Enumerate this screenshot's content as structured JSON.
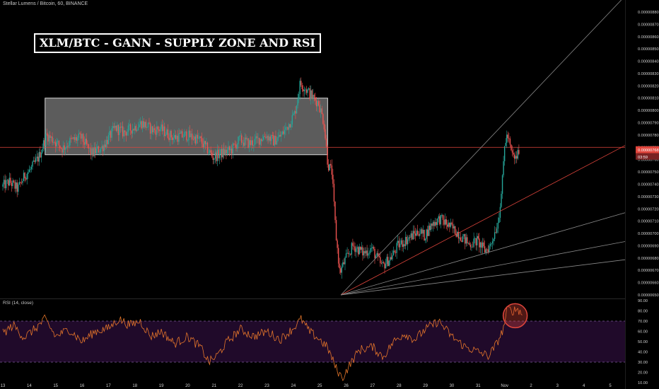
{
  "header": {
    "symbol": "Stellar Lumens / Bitcoin, 60, BINANCE",
    "title": "XLM/BTC - GANN - SUPPLY ZONE AND RSI"
  },
  "rsi_panel": {
    "label": "RSI (14, close)"
  },
  "colors": {
    "background": "#000000",
    "candle_up": "#26a69a",
    "candle_down": "#ef5350",
    "price_line": "#e0453c",
    "rsi_line": "#e6762a",
    "rsi_band_fill": "#200a2a",
    "rsi_levels": "#7a5a9a",
    "gann_fan": "#8a8a8a",
    "gann_red": "#e0453c",
    "supply_zone": "#808080",
    "highlight_circle": "#e0453c"
  },
  "chart_data": [
    {
      "type": "candlestick",
      "title": "XLM/BTC - GANN - SUPPLY ZONE AND RSI",
      "symbol": "Stellar Lumens / Bitcoin, 60, BINANCE",
      "price_axis": {
        "ylim": [
          6.5e-06,
          8.8e-06
        ],
        "ticks": [
          "0.00000880",
          "0.00000870",
          "0.00000860",
          "0.00000850",
          "0.00000840",
          "0.00000830",
          "0.00000820",
          "0.00000810",
          "0.00000800",
          "0.00000790",
          "0.00000780",
          "0.00000770",
          "0.00000760",
          "0.00000750",
          "0.00000740",
          "0.00000730",
          "0.00000720",
          "0.00000710",
          "0.00000700",
          "0.00000690",
          "0.00000680",
          "0.00000670",
          "0.00000660",
          "0.00000650"
        ]
      },
      "time_axis": {
        "ticks": [
          "13",
          "14",
          "15",
          "16",
          "17",
          "18",
          "19",
          "20",
          "21",
          "22",
          "23",
          "24",
          "25",
          "26",
          "27",
          "28",
          "29",
          "30",
          "31",
          "Nov",
          "2",
          "3",
          "4",
          "5"
        ]
      },
      "price_path": [
        {
          "day": 13.0,
          "price": 7.38e-06
        },
        {
          "day": 13.3,
          "price": 7.42e-06
        },
        {
          "day": 13.6,
          "price": 7.36e-06
        },
        {
          "day": 13.9,
          "price": 7.48e-06
        },
        {
          "day": 14.1,
          "price": 7.52e-06
        },
        {
          "day": 14.4,
          "price": 7.62e-06
        },
        {
          "day": 14.7,
          "price": 7.8e-06
        },
        {
          "day": 15.0,
          "price": 7.75e-06
        },
        {
          "day": 15.3,
          "price": 7.69e-06
        },
        {
          "day": 15.6,
          "price": 7.75e-06
        },
        {
          "day": 16.0,
          "price": 7.78e-06
        },
        {
          "day": 16.4,
          "price": 7.65e-06
        },
        {
          "day": 16.8,
          "price": 7.7e-06
        },
        {
          "day": 17.0,
          "price": 7.76e-06
        },
        {
          "day": 17.3,
          "price": 7.86e-06
        },
        {
          "day": 17.6,
          "price": 7.82e-06
        },
        {
          "day": 18.0,
          "price": 7.86e-06
        },
        {
          "day": 18.3,
          "price": 7.9e-06
        },
        {
          "day": 18.7,
          "price": 7.84e-06
        },
        {
          "day": 19.0,
          "price": 7.85e-06
        },
        {
          "day": 19.5,
          "price": 7.78e-06
        },
        {
          "day": 20.0,
          "price": 7.8e-06
        },
        {
          "day": 20.5,
          "price": 7.76e-06
        },
        {
          "day": 20.8,
          "price": 7.68e-06
        },
        {
          "day": 21.0,
          "price": 7.62e-06
        },
        {
          "day": 21.3,
          "price": 7.65e-06
        },
        {
          "day": 21.7,
          "price": 7.68e-06
        },
        {
          "day": 22.0,
          "price": 7.76e-06
        },
        {
          "day": 22.4,
          "price": 7.73e-06
        },
        {
          "day": 22.8,
          "price": 7.77e-06
        },
        {
          "day": 23.0,
          "price": 7.8e-06
        },
        {
          "day": 23.3,
          "price": 7.75e-06
        },
        {
          "day": 23.6,
          "price": 7.8e-06
        },
        {
          "day": 23.9,
          "price": 7.9e-06
        },
        {
          "day": 24.1,
          "price": 7.98e-06
        },
        {
          "day": 24.3,
          "price": 8.22e-06
        },
        {
          "day": 24.5,
          "price": 8.18e-06
        },
        {
          "day": 24.8,
          "price": 8.1e-06
        },
        {
          "day": 25.0,
          "price": 8.06e-06
        },
        {
          "day": 25.2,
          "price": 7.9e-06
        },
        {
          "day": 25.35,
          "price": 7.56e-06
        },
        {
          "day": 25.5,
          "price": 7.5e-06
        },
        {
          "day": 25.65,
          "price": 7e-06
        },
        {
          "day": 25.8,
          "price": 6.68e-06
        },
        {
          "day": 26.0,
          "price": 6.78e-06
        },
        {
          "day": 26.3,
          "price": 6.9e-06
        },
        {
          "day": 26.7,
          "price": 6.84e-06
        },
        {
          "day": 27.0,
          "price": 6.88e-06
        },
        {
          "day": 27.4,
          "price": 6.73e-06
        },
        {
          "day": 27.8,
          "price": 6.82e-06
        },
        {
          "day": 28.0,
          "price": 6.9e-06
        },
        {
          "day": 28.4,
          "price": 6.96e-06
        },
        {
          "day": 28.8,
          "price": 7.02e-06
        },
        {
          "day": 29.0,
          "price": 6.98e-06
        },
        {
          "day": 29.3,
          "price": 7.08e-06
        },
        {
          "day": 29.6,
          "price": 7.12e-06
        },
        {
          "day": 30.0,
          "price": 7.05e-06
        },
        {
          "day": 30.3,
          "price": 7e-06
        },
        {
          "day": 30.7,
          "price": 6.91e-06
        },
        {
          "day": 31.0,
          "price": 6.94e-06
        },
        {
          "day": 31.3,
          "price": 6.86e-06
        },
        {
          "day": 31.5,
          "price": 6.9e-06
        },
        {
          "day": 31.8,
          "price": 7.1e-06
        },
        {
          "day": 31.95,
          "price": 7.4e-06
        },
        {
          "day": 32.05,
          "price": 7.74e-06
        },
        {
          "day": 32.15,
          "price": 7.8e-06
        },
        {
          "day": 32.3,
          "price": 7.65e-06
        },
        {
          "day": 32.45,
          "price": 7.6e-06
        },
        {
          "day": 32.6,
          "price": 7.68e-06
        }
      ],
      "current_price": {
        "value": "0.00000768",
        "countdown": "03:59"
      },
      "supply_zone": {
        "day_start": 14.6,
        "day_end": 25.3,
        "price_high": 8.1e-06,
        "price_low": 7.64e-06
      },
      "horizontal_line": {
        "price": 7.7e-06
      },
      "gann_fan": {
        "origin": {
          "day": 25.8,
          "price": 6.5e-06
        },
        "lines": [
          {
            "through": {
              "day": 32.0,
              "price": 7.9e-06
            },
            "color": "gray"
          },
          {
            "through": {
              "day": 32.0,
              "price": 7.2e-06
            },
            "color": "red"
          },
          {
            "through": {
              "day": 32.0,
              "price": 6.885e-06
            },
            "color": "gray"
          },
          {
            "through": {
              "day": 32.0,
              "price": 6.75e-06
            },
            "color": "gray"
          },
          {
            "through": {
              "day": 32.0,
              "price": 6.665e-06
            },
            "color": "gray"
          }
        ]
      }
    },
    {
      "type": "line",
      "title": "RSI (14, close)",
      "ylim": [
        10,
        90
      ],
      "ticks": [
        "90.00",
        "80.00",
        "70.00",
        "60.00",
        "50.00",
        "40.00",
        "30.00",
        "20.00",
        "10.00"
      ],
      "levels": [
        70,
        30
      ],
      "rsi_path": [
        {
          "day": 13.0,
          "value": 58
        },
        {
          "day": 13.4,
          "value": 66
        },
        {
          "day": 13.8,
          "value": 54
        },
        {
          "day": 14.2,
          "value": 62
        },
        {
          "day": 14.6,
          "value": 72
        },
        {
          "day": 15.0,
          "value": 55
        },
        {
          "day": 15.5,
          "value": 62
        },
        {
          "day": 16.0,
          "value": 50
        },
        {
          "day": 16.5,
          "value": 60
        },
        {
          "day": 17.0,
          "value": 63
        },
        {
          "day": 17.4,
          "value": 72
        },
        {
          "day": 17.8,
          "value": 66
        },
        {
          "day": 18.2,
          "value": 70
        },
        {
          "day": 18.6,
          "value": 55
        },
        {
          "day": 19.0,
          "value": 60
        },
        {
          "day": 19.5,
          "value": 48
        },
        {
          "day": 20.0,
          "value": 55
        },
        {
          "day": 20.5,
          "value": 44
        },
        {
          "day": 20.8,
          "value": 30
        },
        {
          "day": 21.1,
          "value": 36
        },
        {
          "day": 21.5,
          "value": 50
        },
        {
          "day": 22.0,
          "value": 62
        },
        {
          "day": 22.5,
          "value": 55
        },
        {
          "day": 23.0,
          "value": 60
        },
        {
          "day": 23.5,
          "value": 52
        },
        {
          "day": 24.0,
          "value": 63
        },
        {
          "day": 24.3,
          "value": 72
        },
        {
          "day": 24.6,
          "value": 60
        },
        {
          "day": 25.0,
          "value": 52
        },
        {
          "day": 25.3,
          "value": 44
        },
        {
          "day": 25.6,
          "value": 25
        },
        {
          "day": 25.85,
          "value": 14
        },
        {
          "day": 26.1,
          "value": 26
        },
        {
          "day": 26.5,
          "value": 42
        },
        {
          "day": 27.0,
          "value": 45
        },
        {
          "day": 27.4,
          "value": 35
        },
        {
          "day": 27.8,
          "value": 50
        },
        {
          "day": 28.2,
          "value": 58
        },
        {
          "day": 28.6,
          "value": 52
        },
        {
          "day": 29.0,
          "value": 62
        },
        {
          "day": 29.5,
          "value": 70
        },
        {
          "day": 30.0,
          "value": 55
        },
        {
          "day": 30.5,
          "value": 45
        },
        {
          "day": 31.0,
          "value": 40
        },
        {
          "day": 31.4,
          "value": 36
        },
        {
          "day": 31.7,
          "value": 48
        },
        {
          "day": 31.95,
          "value": 62
        },
        {
          "day": 32.1,
          "value": 82
        },
        {
          "day": 32.3,
          "value": 80
        },
        {
          "day": 32.5,
          "value": 82
        },
        {
          "day": 32.7,
          "value": 75
        }
      ],
      "highlight": {
        "day": 32.4,
        "value": 78
      }
    }
  ]
}
